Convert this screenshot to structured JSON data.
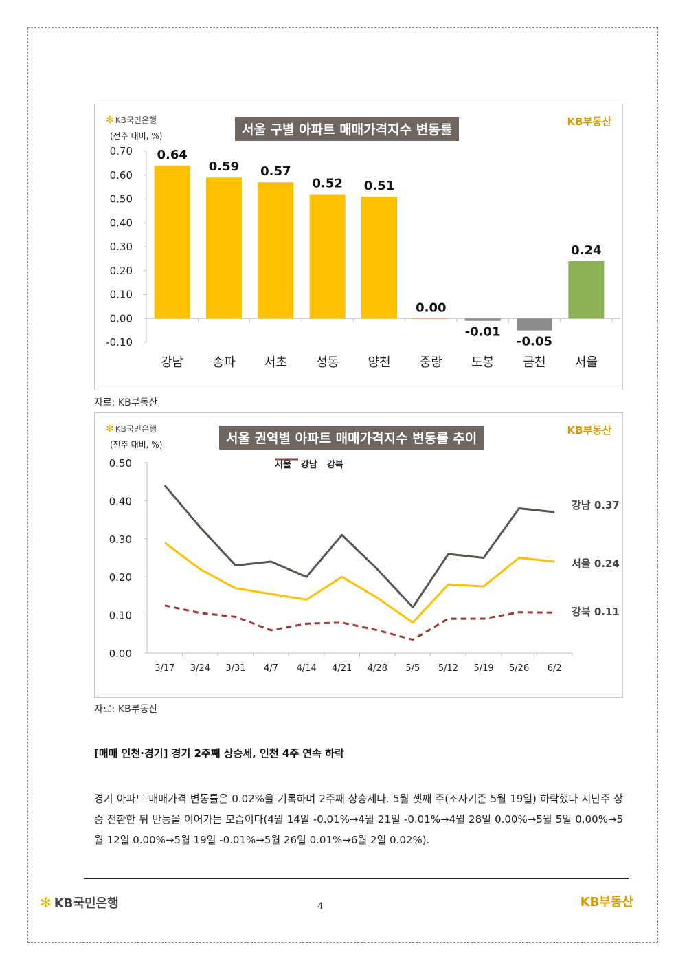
{
  "header": {
    "bank_logo": "KB국민은행",
    "brand_logo": "KB부동산"
  },
  "charts": {
    "chart1": {
      "title": "서울 구별 아파트 매매가격지수 변동률",
      "unit": "(전주 대비, %)",
      "source": "자료: KB부동산"
    },
    "chart2": {
      "title": "서울 권역별 아파트 매매가격지수 변동률 추이",
      "unit": "(전주 대비, %)",
      "source": "자료: KB부동산",
      "end_labels": [
        "강남 0.37",
        "서울 0.24",
        "강북 0.11"
      ]
    }
  },
  "chart_data": [
    {
      "type": "bar",
      "title": "서울 구별 아파트 매매가격지수 변동률",
      "ylabel": "(전주 대비, %)",
      "categories": [
        "강남",
        "송파",
        "서초",
        "성동",
        "양천",
        "중랑",
        "도봉",
        "금천",
        "서울"
      ],
      "values": [
        0.64,
        0.59,
        0.57,
        0.52,
        0.51,
        0.0,
        -0.01,
        -0.05,
        0.24
      ],
      "value_labels": [
        "0.64",
        "0.59",
        "0.57",
        "0.52",
        "0.51",
        "0.00",
        "-0.01",
        "-0.05",
        "0.24"
      ],
      "bar_colors": [
        "#ffc000",
        "#ffc000",
        "#ffc000",
        "#ffc000",
        "#ffc000",
        "#ffc000",
        "#8c8c8c",
        "#8c8c8c",
        "#8db255"
      ],
      "ylim": [
        -0.1,
        0.7
      ],
      "yticks": [
        "-0.10",
        "0.00",
        "0.10",
        "0.20",
        "0.30",
        "0.40",
        "0.50",
        "0.60",
        "0.70"
      ],
      "grid": false
    },
    {
      "type": "line",
      "title": "서울 권역별 아파트 매매가격지수 변동률 추이",
      "ylabel": "(전주 대비, %)",
      "x": [
        "3/17",
        "3/24",
        "3/31",
        "4/7",
        "4/14",
        "4/21",
        "4/28",
        "5/5",
        "5/12",
        "5/19",
        "5/26",
        "6/2"
      ],
      "series": [
        {
          "name": "서울",
          "color": "#ffc000",
          "dash": false,
          "values": [
            0.29,
            0.22,
            0.17,
            0.155,
            0.14,
            0.2,
            0.145,
            0.08,
            0.18,
            0.175,
            0.25,
            0.24
          ]
        },
        {
          "name": "강남",
          "color": "#5a544e",
          "dash": false,
          "values": [
            0.44,
            0.33,
            0.23,
            0.24,
            0.2,
            0.31,
            0.22,
            0.12,
            0.26,
            0.25,
            0.38,
            0.37
          ]
        },
        {
          "name": "강북",
          "color": "#9b3a32",
          "dash": true,
          "values": [
            0.125,
            0.105,
            0.095,
            0.06,
            0.077,
            0.08,
            0.06,
            0.035,
            0.09,
            0.09,
            0.107,
            0.106
          ]
        }
      ],
      "ylim": [
        0.0,
        0.5
      ],
      "yticks": [
        "0.00",
        "0.10",
        "0.20",
        "0.30",
        "0.40",
        "0.50"
      ],
      "legend": "top-center",
      "grid": false
    }
  ],
  "article": {
    "heading": "[매매 인천·경기] 경기 2주째 상승세, 인천 4주 연속 하락",
    "paragraph": "경기 아파트 매매가격 변동률은 0.02%을 기록하며 2주째 상승세다. 5월 셋째 주(조사기준 5월 19일) 하락했다 지난주 상승 전환한 뒤 반등을 이어가는 모습이다(4월 14일 -0.01%→4월 21일 -0.01%→4월 28일 0.00%→5월 5일 0.00%→5월 12일 0.00%→5월 19일 -0.01%→5월 26일 0.01%→6월 2일 0.02%)."
  },
  "footer": {
    "bank_logo": "KB국민은행",
    "page_number": "4",
    "brand_logo": "KB부동산"
  }
}
